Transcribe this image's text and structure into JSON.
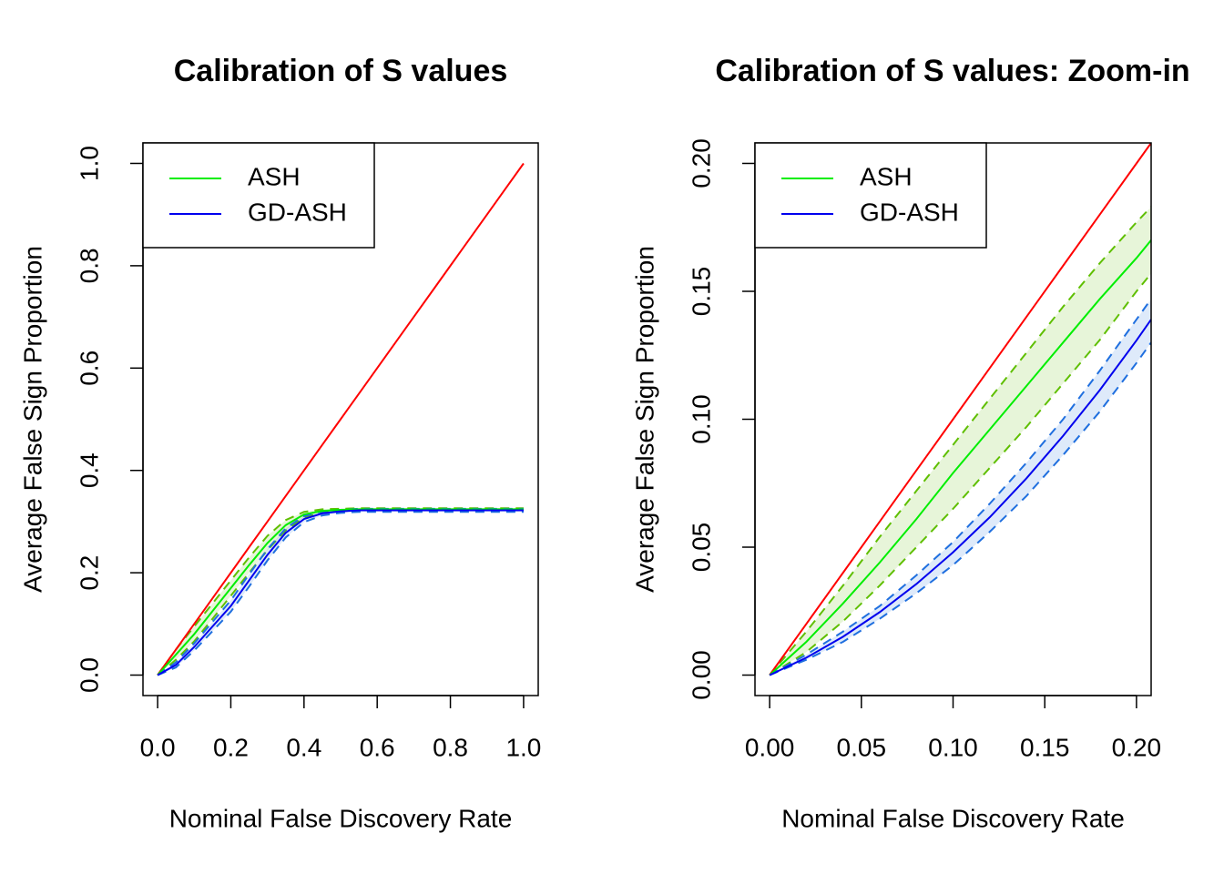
{
  "chart_data": [
    {
      "type": "line",
      "title": "Calibration of S values",
      "xlabel": "Nominal False Discovery Rate",
      "ylabel": "Average False Sign Proportion",
      "x": [
        0,
        0.05,
        0.1,
        0.15,
        0.2,
        0.25,
        0.3,
        0.35,
        0.4,
        0.45,
        0.5,
        0.55,
        0.6,
        0.65,
        0.7,
        0.75,
        0.8,
        0.85,
        0.9,
        0.95,
        1.0
      ],
      "xlim": [
        -0.04,
        1.04
      ],
      "ylim": [
        -0.04,
        1.04
      ],
      "xticks": [
        {
          "value": 0,
          "label": "0.0"
        },
        0.2,
        0.4,
        0.6,
        0.8,
        {
          "value": 1,
          "label": "1.0"
        }
      ],
      "yticks": [
        {
          "value": 0,
          "label": "0.0"
        },
        0.2,
        0.4,
        0.6,
        0.8,
        {
          "value": 1,
          "label": "1.0"
        }
      ],
      "legend": "topleft",
      "series": [
        {
          "color": "#ff0000",
          "values": [
            0,
            0.05,
            0.1,
            0.15,
            0.2,
            0.25,
            0.3,
            0.35,
            0.4,
            0.45,
            0.5,
            0.55,
            0.6,
            0.65,
            0.7,
            0.75,
            0.8,
            0.85,
            0.9,
            0.95,
            1.0
          ]
        },
        {
          "name": "ASH",
          "color": "#00ee00",
          "band_color": "#5fbf00",
          "values": [
            0,
            0.04,
            0.08,
            0.125,
            0.17,
            0.215,
            0.258,
            0.293,
            0.314,
            0.321,
            0.323,
            0.324,
            0.324,
            0.324,
            0.324,
            0.324,
            0.324,
            0.324,
            0.324,
            0.324,
            0.324
          ],
          "upper": [
            0,
            0.05,
            0.095,
            0.14,
            0.185,
            0.23,
            0.272,
            0.303,
            0.319,
            0.324,
            0.325,
            0.326,
            0.326,
            0.326,
            0.326,
            0.326,
            0.326,
            0.326,
            0.326,
            0.326,
            0.326
          ],
          "lower": [
            0,
            0.03,
            0.066,
            0.11,
            0.155,
            0.2,
            0.244,
            0.283,
            0.308,
            0.318,
            0.321,
            0.322,
            0.322,
            0.322,
            0.322,
            0.322,
            0.322,
            0.322,
            0.322,
            0.322,
            0.322
          ]
        },
        {
          "name": "GD-ASH",
          "color": "#0000ee",
          "band_color": "#1f6fdf",
          "values": [
            0,
            0.02,
            0.055,
            0.095,
            0.135,
            0.185,
            0.235,
            0.278,
            0.305,
            0.316,
            0.32,
            0.322,
            0.322,
            0.322,
            0.322,
            0.322,
            0.322,
            0.322,
            0.322,
            0.322,
            0.322
          ],
          "upper": [
            0,
            0.025,
            0.062,
            0.104,
            0.146,
            0.197,
            0.246,
            0.287,
            0.311,
            0.32,
            0.323,
            0.325,
            0.325,
            0.325,
            0.325,
            0.325,
            0.325,
            0.325,
            0.325,
            0.325,
            0.325
          ],
          "lower": [
            0,
            0.015,
            0.048,
            0.086,
            0.124,
            0.173,
            0.224,
            0.269,
            0.299,
            0.312,
            0.317,
            0.319,
            0.319,
            0.319,
            0.319,
            0.319,
            0.319,
            0.319,
            0.319,
            0.319,
            0.319
          ]
        }
      ]
    },
    {
      "type": "line",
      "title": "Calibration of S values: Zoom-in",
      "xlabel": "Nominal False Discovery Rate",
      "ylabel": "Average False Sign Proportion",
      "x": [
        0,
        0.02,
        0.04,
        0.06,
        0.08,
        0.1,
        0.12,
        0.14,
        0.16,
        0.18,
        0.2,
        0.208
      ],
      "xlim": [
        -0.008,
        0.208
      ],
      "ylim": [
        -0.008,
        0.208
      ],
      "xticks": [
        {
          "value": 0,
          "label": "0.00"
        },
        0.05,
        {
          "value": 0.1,
          "label": "0.10"
        },
        0.15,
        {
          "value": 0.2,
          "label": "0.20"
        }
      ],
      "yticks": [
        {
          "value": 0,
          "label": "0.00"
        },
        0.05,
        {
          "value": 0.1,
          "label": "0.10"
        },
        0.15,
        {
          "value": 0.2,
          "label": "0.20"
        }
      ],
      "legend": "topleft",
      "series": [
        {
          "color": "#ff0000",
          "values": [
            0,
            0.02,
            0.04,
            0.06,
            0.08,
            0.1,
            0.12,
            0.14,
            0.16,
            0.18,
            0.2,
            0.208
          ]
        },
        {
          "name": "ASH",
          "color": "#00ee00",
          "band_color": "#5fbf00",
          "values": [
            0,
            0.013,
            0.028,
            0.044,
            0.061,
            0.079,
            0.096,
            0.113,
            0.13,
            0.147,
            0.163,
            0.17
          ],
          "upper": [
            0,
            0.017,
            0.035,
            0.054,
            0.072,
            0.09,
            0.108,
            0.126,
            0.144,
            0.161,
            0.177,
            0.183
          ],
          "lower": [
            0,
            0.009,
            0.021,
            0.035,
            0.05,
            0.065,
            0.081,
            0.097,
            0.114,
            0.131,
            0.15,
            0.157
          ]
        },
        {
          "name": "GD-ASH",
          "color": "#0000ee",
          "band_color": "#1f6fdf",
          "values": [
            0,
            0.0068,
            0.015,
            0.0246,
            0.0356,
            0.048,
            0.0617,
            0.0769,
            0.0935,
            0.1114,
            0.1308,
            0.139
          ],
          "upper": [
            0,
            0.008,
            0.017,
            0.027,
            0.039,
            0.052,
            0.067,
            0.083,
            0.1,
            0.119,
            0.139,
            0.147
          ],
          "lower": [
            0,
            0.006,
            0.013,
            0.022,
            0.032,
            0.043,
            0.056,
            0.07,
            0.086,
            0.103,
            0.122,
            0.13
          ]
        }
      ]
    }
  ]
}
